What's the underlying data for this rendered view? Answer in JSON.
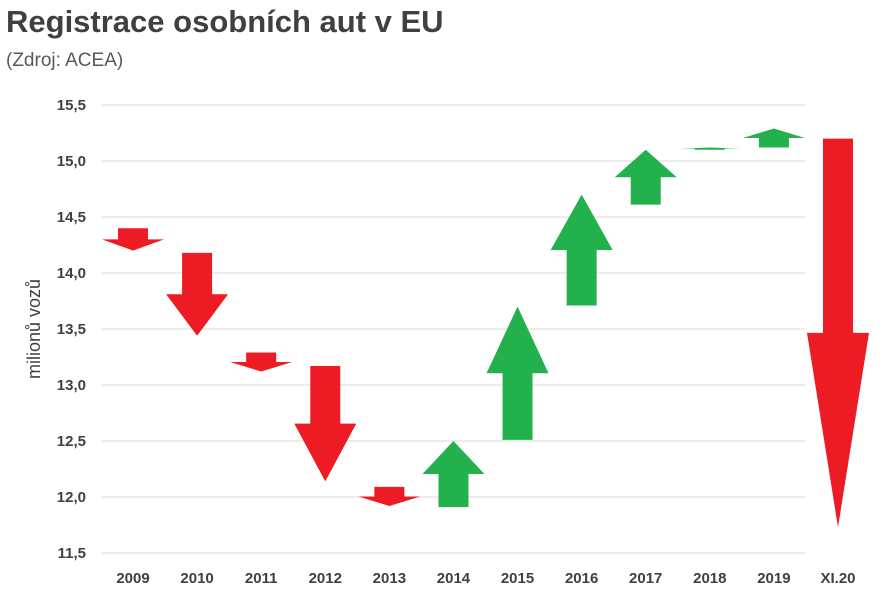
{
  "chart_data": {
    "type": "waterfall-arrows",
    "title": "Registrace osobních aut v EU",
    "subtitle": "(Zdroj: ACEA)",
    "ylabel": "milionů vozů",
    "ylim": [
      11.5,
      15.5
    ],
    "yticks": [
      "11,5",
      "12,0",
      "12,5",
      "13,0",
      "13,5",
      "14,0",
      "14,5",
      "15,0",
      "15,5"
    ],
    "grid": true,
    "colors": {
      "down": "#ED1C24",
      "up": "#22B14C"
    },
    "categories": [
      "2009",
      "2010",
      "2011",
      "2012",
      "2013",
      "2014",
      "2015",
      "2016",
      "2017",
      "2018",
      "2019",
      "XI.20"
    ],
    "series": [
      {
        "start": 14.4,
        "end": 14.2
      },
      {
        "start": 14.18,
        "end": 13.44
      },
      {
        "start": 13.29,
        "end": 13.12
      },
      {
        "start": 13.17,
        "end": 12.14
      },
      {
        "start": 12.09,
        "end": 11.92
      },
      {
        "start": 11.91,
        "end": 12.5
      },
      {
        "start": 12.51,
        "end": 13.7
      },
      {
        "start": 13.71,
        "end": 14.7
      },
      {
        "start": 14.61,
        "end": 15.1
      },
      {
        "start": 15.1,
        "end": 15.12
      },
      {
        "start": 15.12,
        "end": 15.29
      },
      {
        "start": 15.2,
        "end": 11.73
      }
    ]
  }
}
